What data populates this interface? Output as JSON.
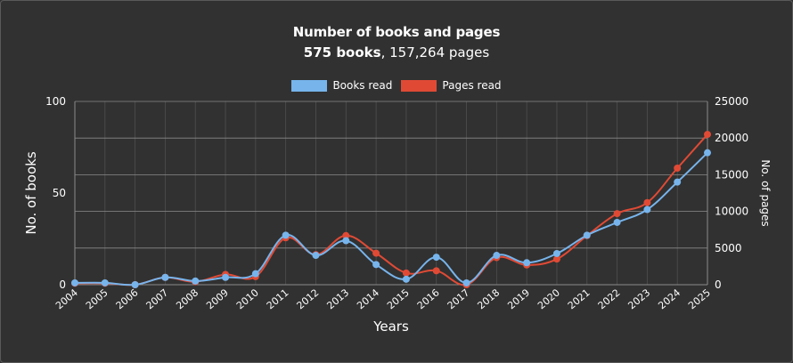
{
  "chart_data": {
    "type": "line",
    "title": "Number of books and pages",
    "subtitle_bold": "575 books",
    "subtitle_rest": ", 157,264 pages",
    "xlabel": "Years",
    "ylabel": "No. of books",
    "y2label": "No. of pages",
    "categories": [
      "2004",
      "2005",
      "2006",
      "2007",
      "2008",
      "2009",
      "2010",
      "2011",
      "2012",
      "2013",
      "2014",
      "2015",
      "2016",
      "2017",
      "2018",
      "2019",
      "2020",
      "2021",
      "2022",
      "2023",
      "2024",
      "2025"
    ],
    "ylim": [
      0,
      100
    ],
    "y2lim": [
      0,
      25000
    ],
    "yticks": [
      "0",
      "50",
      "100"
    ],
    "yticks_values": [
      0,
      50,
      100
    ],
    "y2ticks": [
      "0",
      "5000",
      "10000",
      "15000",
      "20000",
      "25000"
    ],
    "y2ticks_values": [
      0,
      5000,
      10000,
      15000,
      20000,
      25000
    ],
    "grid": true,
    "legend_position": "top-center",
    "series": [
      {
        "name": "Books read",
        "axis": "left",
        "color": "#77b4ec",
        "values": [
          1,
          1,
          0,
          4,
          2,
          4,
          6,
          27,
          16,
          24,
          11,
          3,
          15,
          1,
          16,
          12,
          17,
          27,
          34,
          41,
          56,
          72
        ]
      },
      {
        "name": "Pages read",
        "axis": "right",
        "color": "#e04a35",
        "values": [
          200,
          200,
          0,
          1000,
          400,
          1400,
          1100,
          6400,
          4100,
          6700,
          4300,
          1600,
          1900,
          0,
          3700,
          2700,
          3500,
          6700,
          9700,
          11200,
          15900,
          20500
        ]
      }
    ]
  },
  "colors": {
    "background": "#313131",
    "grid": "#8a8a8a",
    "text": "#ffffff"
  }
}
